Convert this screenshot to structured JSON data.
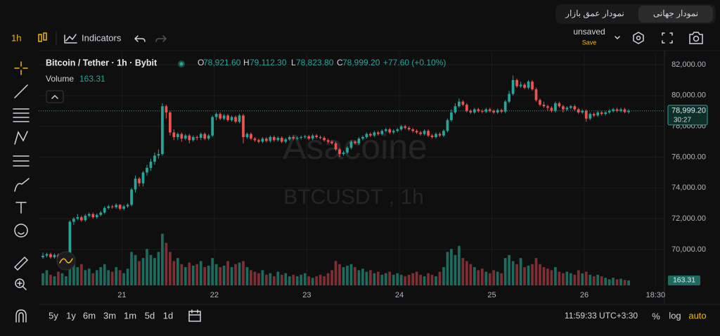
{
  "tabs": [
    "نمودار جهانی",
    "نمودار عمق بازار"
  ],
  "toolbar": {
    "interval": "1h",
    "indicators": "Indicators",
    "layout": "unsaved",
    "save": "Save"
  },
  "legend": {
    "symbol": "Bitcoin / Tether · 1h · Bybit",
    "o_key": "O",
    "open": "78,921.60",
    "h_key": "H",
    "high": "79,112.30",
    "l_key": "L",
    "low": "78,823.80",
    "c_key": "C",
    "close": "78,999.20",
    "change": "+77.60 (+0.10%)",
    "volume_key": "Volume",
    "volume": "163.31"
  },
  "watermark": {
    "brand": "Asacoine",
    "symbol": "BTCUSDT , 1h"
  },
  "chart_data": {
    "type": "candlestick",
    "up_color": "#26a69a",
    "down_color": "#ef5350",
    "volume_up_color": "#1d6b5f",
    "volume_down_color": "#7d2f33",
    "grid": true,
    "xlim": [
      -1.1,
      161.3
    ],
    "xticks": [
      {
        "value": 20.5,
        "label": "21"
      },
      {
        "value": 44.5,
        "label": "22"
      },
      {
        "value": 68.5,
        "label": "23"
      },
      {
        "value": 92.5,
        "label": "24"
      },
      {
        "value": 116.5,
        "label": "25"
      },
      {
        "value": 140.5,
        "label": "26"
      },
      {
        "value": 159,
        "label": "18:30"
      }
    ],
    "ylim": [
      67580,
      82776
    ],
    "yticks": [
      {
        "value": 70000,
        "label": "70,000.00"
      },
      {
        "value": 72000,
        "label": "72,000.00"
      },
      {
        "value": 74000,
        "label": "74,000.00"
      },
      {
        "value": 76000,
        "label": "76,000.00"
      },
      {
        "value": 78000,
        "label": "78,000.00"
      },
      {
        "value": 80000,
        "label": "80,000.00"
      },
      {
        "value": 82000,
        "label": "82,000.00"
      }
    ],
    "volume_lim": [
      0,
      3700
    ],
    "open": [
      69500,
      69600,
      69700,
      69500,
      69650,
      69400,
      69550,
      69600,
      71800,
      72000,
      72100,
      71900,
      72200,
      72300,
      72100,
      72250,
      72400,
      72700,
      72800,
      72750,
      72900,
      72650,
      72800,
      72900,
      73900,
      74600,
      74300,
      75000,
      75300,
      75700,
      76100,
      76200,
      79300,
      78900,
      77600,
      77300,
      77500,
      77200,
      77400,
      77100,
      77300,
      77250,
      77500,
      77200,
      77400,
      78600,
      78800,
      78500,
      78700,
      78400,
      78600,
      78300,
      78700,
      77300,
      77500,
      77200,
      77100,
      77000,
      77200,
      77050,
      77300,
      77100,
      77250,
      77000,
      77150,
      77300,
      77200,
      77250,
      77300,
      77350,
      77200,
      77400,
      77300,
      77250,
      77100,
      77000,
      76900,
      76500,
      76200,
      76300,
      76600,
      77000,
      76900,
      77200,
      77300,
      77500,
      77400,
      77600,
      77500,
      77700,
      77800,
      77600,
      77700,
      77800,
      78000,
      77900,
      77800,
      77700,
      77600,
      77500,
      77700,
      77400,
      77300,
      77500,
      77400,
      77700,
      78400,
      78900,
      79300,
      79600,
      79400,
      79000,
      78900,
      79100,
      79000,
      78950,
      79100,
      79000,
      78900,
      79050,
      78950,
      79600,
      80100,
      81000,
      80600,
      80700,
      80500,
      80900,
      80400,
      79700,
      79400,
      79300,
      79200,
      79000,
      79500,
      79300,
      79100,
      79200,
      79300,
      79100,
      78900,
      79000,
      78500,
      78800,
      78700,
      78900,
      78800,
      78900,
      79000,
      79100,
      79000,
      79100,
      78921.6
    ],
    "high": [
      69800,
      69800,
      69800,
      69750,
      69750,
      69650,
      69700,
      71900,
      72100,
      72300,
      72200,
      72300,
      72400,
      72400,
      72350,
      72500,
      72800,
      72900,
      72900,
      73000,
      72950,
      72900,
      73000,
      74000,
      74800,
      74700,
      75100,
      75500,
      75900,
      76300,
      76500,
      79500,
      79400,
      79000,
      77800,
      77600,
      77600,
      77500,
      77500,
      77400,
      77400,
      77600,
      77600,
      77500,
      78700,
      78900,
      78900,
      78800,
      78800,
      78700,
      78700,
      78800,
      78800,
      77600,
      77600,
      77300,
      77200,
      77300,
      77300,
      77400,
      77400,
      77350,
      77350,
      77250,
      77400,
      77400,
      77350,
      77400,
      77450,
      77450,
      77500,
      77500,
      77400,
      77350,
      77200,
      77100,
      77000,
      76600,
      76400,
      76700,
      77100,
      77100,
      77300,
      77400,
      77600,
      77600,
      77700,
      77700,
      77800,
      77900,
      77900,
      77800,
      77900,
      78100,
      78100,
      78000,
      77900,
      77800,
      77700,
      77800,
      77800,
      77500,
      77600,
      77600,
      77800,
      78500,
      79100,
      79500,
      79800,
      79700,
      79500,
      79100,
      79200,
      79200,
      79100,
      79200,
      79200,
      79100,
      79150,
      79150,
      79700,
      80300,
      81300,
      81100,
      80900,
      80800,
      81000,
      81000,
      80500,
      79800,
      79600,
      79400,
      79300,
      79600,
      79600,
      79400,
      79300,
      79400,
      79400,
      79200,
      79100,
      79100,
      78900,
      78900,
      79000,
      79000,
      79000,
      79100,
      79200,
      79200,
      79200,
      79200,
      79112.3
    ],
    "low": [
      69400,
      69500,
      69400,
      69400,
      69300,
      69300,
      69450,
      69500,
      71600,
      71900,
      71800,
      71800,
      72100,
      72000,
      72000,
      72150,
      72300,
      72600,
      72650,
      72650,
      72550,
      72550,
      72700,
      72800,
      73700,
      74100,
      74100,
      74800,
      75100,
      75500,
      75900,
      76100,
      78500,
      77400,
      77100,
      77100,
      77000,
      77100,
      76900,
      77000,
      77100,
      77100,
      77100,
      77100,
      77300,
      78400,
      78400,
      78400,
      78300,
      78300,
      78200,
      78200,
      76900,
      77200,
      77100,
      77000,
      76900,
      76900,
      76950,
      76950,
      77000,
      77000,
      76900,
      76900,
      77050,
      77100,
      77100,
      77150,
      77200,
      77100,
      77100,
      77200,
      77150,
      77000,
      76900,
      76800,
      76400,
      76000,
      76100,
      76200,
      76500,
      76800,
      76800,
      77100,
      77200,
      77300,
      77300,
      77400,
      77400,
      77600,
      77500,
      77500,
      77600,
      77700,
      77800,
      77700,
      77600,
      77500,
      77400,
      77400,
      77300,
      77200,
      77200,
      77300,
      77300,
      77600,
      78300,
      78800,
      79200,
      79300,
      78900,
      78800,
      78800,
      78900,
      78850,
      78850,
      78900,
      78800,
      78800,
      78850,
      78850,
      79500,
      80000,
      80500,
      80500,
      80400,
      80400,
      80300,
      79600,
      79300,
      79200,
      79000,
      78900,
      78900,
      79200,
      78900,
      79000,
      79100,
      79000,
      78800,
      78800,
      78300,
      78400,
      78600,
      78600,
      78700,
      78700,
      78800,
      78900,
      78900,
      78900,
      78850,
      78823.8
    ],
    "close": [
      69600,
      69700,
      69500,
      69650,
      69400,
      69550,
      69600,
      71800,
      72000,
      72100,
      71900,
      72200,
      72300,
      72100,
      72250,
      72400,
      72700,
      72800,
      72750,
      72900,
      72650,
      72800,
      72900,
      73900,
      74600,
      74300,
      75000,
      75300,
      75700,
      76100,
      76200,
      79300,
      78900,
      77600,
      77300,
      77500,
      77200,
      77400,
      77100,
      77300,
      77250,
      77500,
      77200,
      77400,
      78600,
      78800,
      78500,
      78700,
      78400,
      78600,
      78300,
      78700,
      77300,
      77500,
      77200,
      77100,
      77000,
      77200,
      77050,
      77300,
      77100,
      77250,
      77000,
      77150,
      77300,
      77200,
      77250,
      77300,
      77350,
      77200,
      77400,
      77300,
      77250,
      77100,
      77000,
      76900,
      76500,
      76200,
      76300,
      76600,
      77000,
      76900,
      77200,
      77300,
      77500,
      77400,
      77600,
      77500,
      77700,
      77800,
      77600,
      77700,
      77800,
      78000,
      77900,
      77800,
      77700,
      77600,
      77500,
      77700,
      77400,
      77300,
      77500,
      77400,
      77700,
      78400,
      78900,
      79300,
      79600,
      79400,
      79000,
      78900,
      79100,
      79000,
      78950,
      79100,
      79000,
      78900,
      79050,
      78950,
      79600,
      80100,
      81000,
      80600,
      80700,
      80500,
      80900,
      80400,
      79700,
      79400,
      79300,
      79200,
      79000,
      79500,
      79300,
      79100,
      79200,
      79300,
      79100,
      78900,
      79000,
      78500,
      78800,
      78700,
      78900,
      78800,
      78900,
      79000,
      79100,
      79000,
      79100,
      78921.6,
      78999.2
    ],
    "volume": [
      400,
      500,
      350,
      300,
      450,
      400,
      300,
      1300,
      900,
      600,
      700,
      500,
      550,
      400,
      500,
      600,
      700,
      500,
      450,
      600,
      500,
      400,
      550,
      1100,
      1000,
      800,
      900,
      1200,
      1000,
      900,
      1100,
      1700,
      1400,
      1100,
      800,
      900,
      700,
      600,
      750,
      650,
      700,
      800,
      600,
      650,
      900,
      700,
      600,
      650,
      800,
      600,
      700,
      750,
      800,
      600,
      500,
      450,
      400,
      500,
      350,
      400,
      300,
      450,
      350,
      400,
      300,
      350,
      300,
      350,
      400,
      300,
      250,
      300,
      350,
      300,
      400,
      500,
      800,
      700,
      600,
      650,
      700,
      600,
      500,
      550,
      450,
      500,
      400,
      450,
      350,
      400,
      450,
      350,
      400,
      350,
      300,
      350,
      400,
      450,
      350,
      300,
      400,
      350,
      300,
      450,
      600,
      1100,
      1200,
      1000,
      1300,
      900,
      800,
      700,
      600,
      500,
      550,
      450,
      400,
      500,
      450,
      400,
      900,
      1000,
      800,
      700,
      900,
      600,
      650,
      700,
      900,
      700,
      600,
      550,
      500,
      600,
      450,
      400,
      450,
      400,
      350,
      500,
      400,
      450,
      350,
      300,
      350,
      300,
      250,
      200,
      250,
      200,
      220,
      180,
      163.31
    ]
  },
  "price_label": {
    "price": "78,999.20",
    "countdown": "30:27",
    "volume": "163.31"
  },
  "bottom_bar": {
    "ranges": [
      "5y",
      "1y",
      "6m",
      "3m",
      "1m",
      "5d",
      "1d"
    ],
    "clock": "11:59:33 UTC+3:30",
    "percent": "%",
    "log": "log",
    "auto": "auto"
  }
}
